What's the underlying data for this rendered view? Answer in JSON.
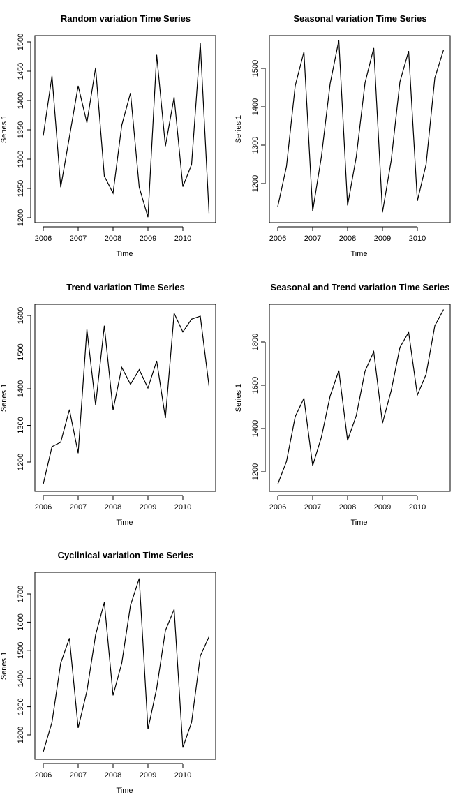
{
  "chart_data": [
    {
      "type": "line",
      "title": "Random variation Time Series",
      "xlabel": "Time",
      "ylabel": "Series 1",
      "xlim": [
        2006,
        2010.75
      ],
      "ylim": [
        1200,
        1500
      ],
      "x_ticks": [
        "2006",
        "2007",
        "2008",
        "2009",
        "2010"
      ],
      "y_ticks": [
        "1200",
        "1250",
        "1300",
        "1350",
        "1400",
        "1450",
        "1500"
      ],
      "grid": false,
      "series": [
        {
          "x": [
            2006,
            2006.25,
            2006.5,
            2006.75,
            2007,
            2007.25,
            2007.5,
            2007.75,
            2008,
            2008.25,
            2008.5,
            2008.75,
            2009,
            2009.25,
            2009.5,
            2009.75,
            2010,
            2010.25,
            2010.5,
            2010.75
          ],
          "values": [
            1340,
            1442,
            1252,
            1338,
            1425,
            1362,
            1456,
            1271,
            1242,
            1358,
            1413,
            1252,
            1201,
            1478,
            1322,
            1406,
            1253,
            1291,
            1498,
            1208
          ]
        }
      ]
    },
    {
      "type": "line",
      "title": "Seasonal variation Time Series",
      "xlabel": "Time",
      "ylabel": "Series 1",
      "xlim": [
        2006,
        2010.75
      ],
      "ylim": [
        1200,
        1500
      ],
      "x_ticks": [
        "2006",
        "2007",
        "2008",
        "2009",
        "2010"
      ],
      "y_ticks": [
        "1200",
        "1300",
        "1400",
        "1500"
      ],
      "grid": false,
      "series": [
        {
          "x": [
            2006,
            2006.25,
            2006.5,
            2006.75,
            2007,
            2007.25,
            2007.5,
            2007.75,
            2008,
            2008.25,
            2008.5,
            2008.75,
            2009,
            2009.25,
            2009.5,
            2009.75,
            2010,
            2010.25,
            2010.5,
            2010.75
          ],
          "values": [
            1140,
            1245,
            1455,
            1543,
            1128,
            1270,
            1460,
            1573,
            1143,
            1270,
            1462,
            1553,
            1125,
            1260,
            1465,
            1545,
            1155,
            1250,
            1475,
            1548
          ]
        }
      ]
    },
    {
      "type": "line",
      "title": "Trend variation Time Series",
      "xlabel": "Time",
      "ylabel": "Series 1",
      "xlim": [
        2006,
        2010.75
      ],
      "ylim": [
        1200,
        1600
      ],
      "x_ticks": [
        "2006",
        "2007",
        "2008",
        "2009",
        "2010"
      ],
      "y_ticks": [
        "1200",
        "1300",
        "1400",
        "1500",
        "1600"
      ],
      "grid": false,
      "series": [
        {
          "x": [
            2006,
            2006.25,
            2006.5,
            2006.75,
            2007,
            2007.25,
            2007.5,
            2007.75,
            2008,
            2008.25,
            2008.5,
            2008.75,
            2009,
            2009.25,
            2009.5,
            2009.75,
            2010,
            2010.25,
            2010.5,
            2010.75
          ],
          "values": [
            1140,
            1242,
            1254,
            1343,
            1224,
            1562,
            1355,
            1572,
            1342,
            1458,
            1412,
            1452,
            1402,
            1476,
            1320,
            1606,
            1555,
            1590,
            1598,
            1407
          ]
        }
      ]
    },
    {
      "type": "line",
      "title": "Seasonal and Trend variation Time Series",
      "xlabel": "Time",
      "ylabel": "Series 1",
      "xlim": [
        2006,
        2010.75
      ],
      "ylim": [
        1200,
        1800
      ],
      "x_ticks": [
        "2006",
        "2007",
        "2008",
        "2009",
        "2010"
      ],
      "y_ticks": [
        "1200",
        "1400",
        "1600",
        "1800"
      ],
      "grid": false,
      "series": [
        {
          "x": [
            2006,
            2006.25,
            2006.5,
            2006.75,
            2007,
            2007.25,
            2007.5,
            2007.75,
            2008,
            2008.25,
            2008.5,
            2008.75,
            2009,
            2009.25,
            2009.5,
            2009.75,
            2010,
            2010.25,
            2010.5,
            2010.75
          ],
          "values": [
            1143,
            1248,
            1455,
            1540,
            1228,
            1360,
            1550,
            1668,
            1345,
            1460,
            1665,
            1755,
            1425,
            1575,
            1775,
            1845,
            1555,
            1650,
            1875,
            1950
          ]
        }
      ]
    },
    {
      "type": "line",
      "title": "Cyclinical variation Time Series",
      "xlabel": "Time",
      "ylabel": "Series 1",
      "xlim": [
        2006,
        2010.75
      ],
      "ylim": [
        1200,
        1700
      ],
      "x_ticks": [
        "2006",
        "2007",
        "2008",
        "2009",
        "2010"
      ],
      "y_ticks": [
        "1200",
        "1300",
        "1400",
        "1500",
        "1600",
        "1700"
      ],
      "grid": false,
      "series": [
        {
          "x": [
            2006,
            2006.25,
            2006.5,
            2006.75,
            2007,
            2007.25,
            2007.5,
            2007.75,
            2008,
            2008.25,
            2008.5,
            2008.75,
            2009,
            2009.25,
            2009.5,
            2009.75,
            2010,
            2010.25,
            2010.5,
            2010.75
          ],
          "values": [
            1140,
            1245,
            1455,
            1543,
            1225,
            1355,
            1555,
            1670,
            1340,
            1455,
            1660,
            1755,
            1220,
            1365,
            1570,
            1645,
            1155,
            1245,
            1480,
            1548
          ]
        }
      ]
    }
  ]
}
